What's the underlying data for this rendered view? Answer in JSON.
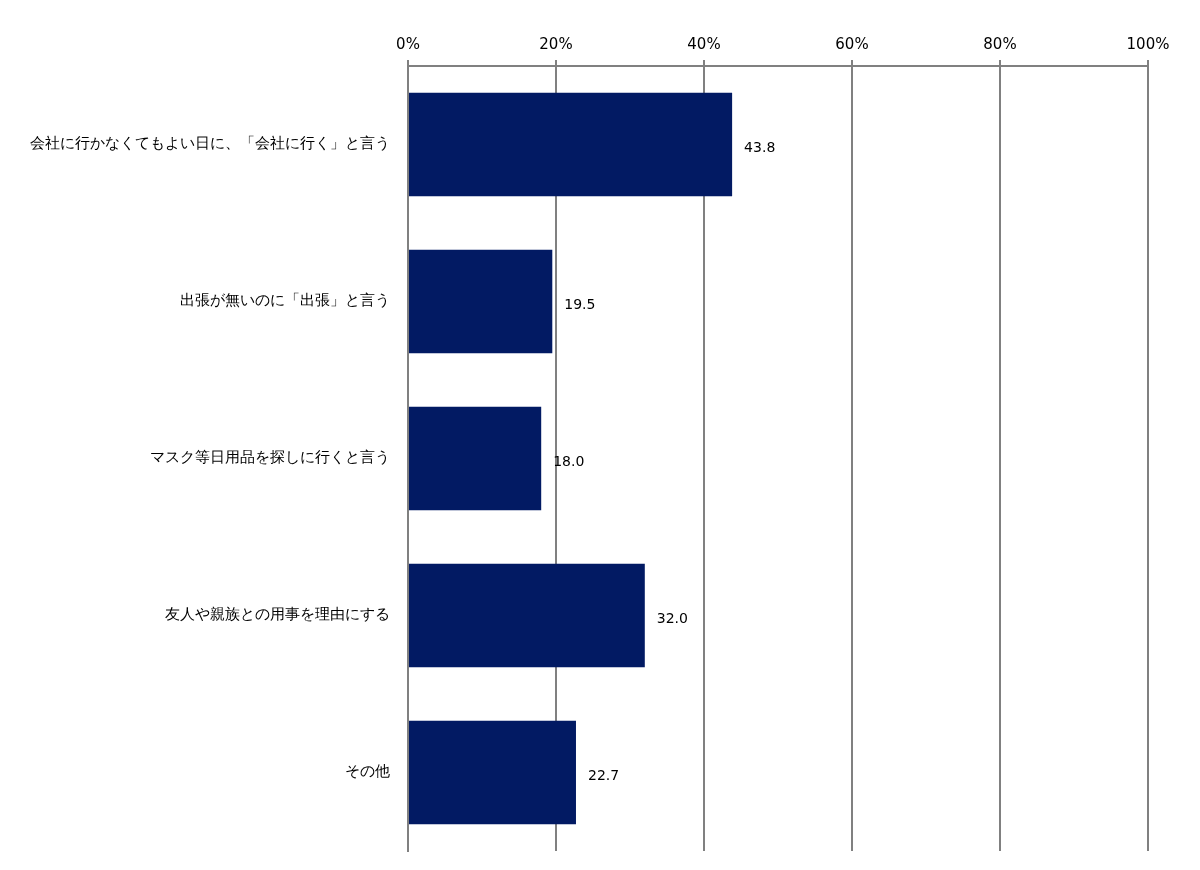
{
  "chart_data": {
    "type": "bar",
    "orientation": "horizontal",
    "categories": [
      "会社に行かなくてもよい日に、「会社に行く」と言う",
      "出張が無いのに「出張」と言う",
      "マスク等日用品を探しに行くと言う",
      "友人や親族との用事を理由にする",
      "その他"
    ],
    "values": [
      43.8,
      19.5,
      18.0,
      32.0,
      22.7
    ],
    "value_labels": [
      "43.8",
      "19.5",
      "18.0",
      "32.0",
      "22.7"
    ],
    "color": "#021a63",
    "xlim": [
      0,
      100
    ],
    "xticks": [
      {
        "value": 0,
        "label": "0%"
      },
      {
        "value": 20,
        "label": "20%"
      },
      {
        "value": 40,
        "label": "40%"
      },
      {
        "value": 60,
        "label": "60%"
      },
      {
        "value": 80,
        "label": "80%"
      },
      {
        "value": 100,
        "label": "100%"
      }
    ],
    "grid": true,
    "data_labels": true
  }
}
